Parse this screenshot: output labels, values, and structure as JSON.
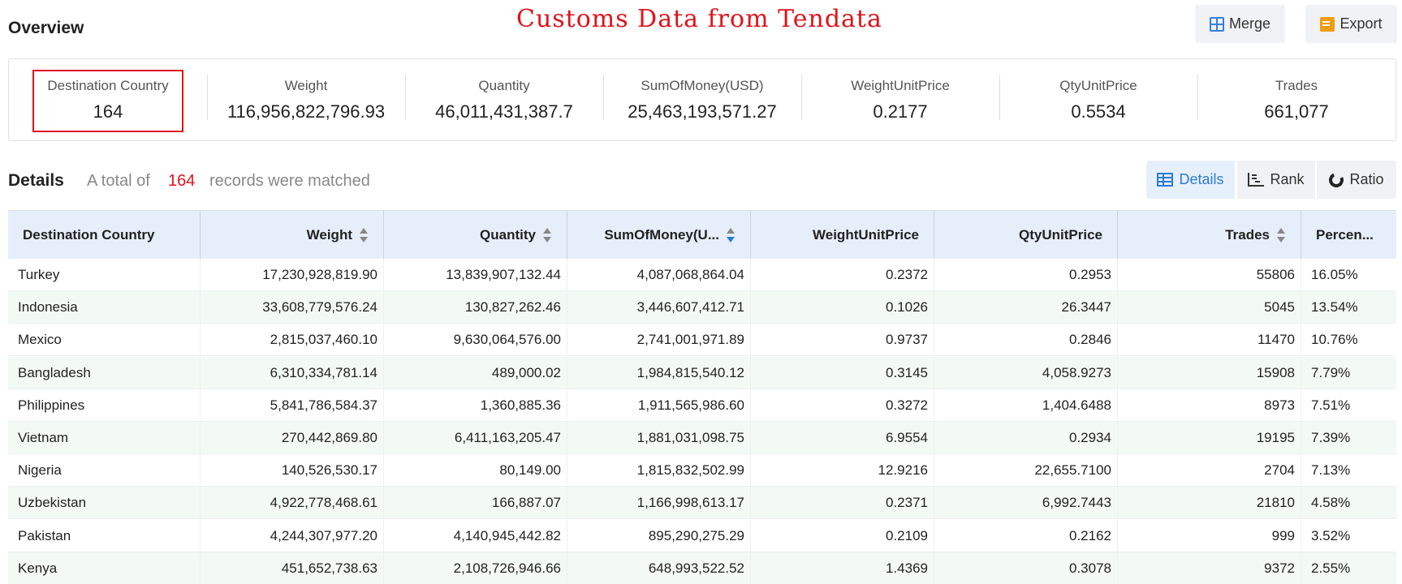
{
  "header": {
    "overview_title": "Overview",
    "watermark": "Customs Data from Tendata",
    "merge_label": "Merge",
    "export_label": "Export"
  },
  "summary": [
    {
      "label": "Destination Country",
      "value": "164"
    },
    {
      "label": "Weight",
      "value": "116,956,822,796.93"
    },
    {
      "label": "Quantity",
      "value": "46,011,431,387.7"
    },
    {
      "label": "SumOfMoney(USD)",
      "value": "25,463,193,571.27"
    },
    {
      "label": "WeightUnitPrice",
      "value": "0.2177"
    },
    {
      "label": "QtyUnitPrice",
      "value": "0.5534"
    },
    {
      "label": "Trades",
      "value": "661,077"
    }
  ],
  "details": {
    "title": "Details",
    "prefix": "A total of",
    "count": "164",
    "suffix": "records were matched",
    "views": {
      "details": "Details",
      "rank": "Rank",
      "ratio": "Ratio"
    }
  },
  "table": {
    "columns": [
      "Destination Country",
      "Weight",
      "Quantity",
      "SumOfMoney(U...",
      "WeightUnitPrice",
      "QtyUnitPrice",
      "Trades",
      "Percen..."
    ],
    "rows": [
      [
        "Turkey",
        "17,230,928,819.90",
        "13,839,907,132.44",
        "4,087,068,864.04",
        "0.2372",
        "0.2953",
        "55806",
        "16.05%"
      ],
      [
        "Indonesia",
        "33,608,779,576.24",
        "130,827,262.46",
        "3,446,607,412.71",
        "0.1026",
        "26.3447",
        "5045",
        "13.54%"
      ],
      [
        "Mexico",
        "2,815,037,460.10",
        "9,630,064,576.00",
        "2,741,001,971.89",
        "0.9737",
        "0.2846",
        "11470",
        "10.76%"
      ],
      [
        "Bangladesh",
        "6,310,334,781.14",
        "489,000.02",
        "1,984,815,540.12",
        "0.3145",
        "4,058.9273",
        "15908",
        "7.79%"
      ],
      [
        "Philippines",
        "5,841,786,584.37",
        "1,360,885.36",
        "1,911,565,986.60",
        "0.3272",
        "1,404.6488",
        "8973",
        "7.51%"
      ],
      [
        "Vietnam",
        "270,442,869.80",
        "6,411,163,205.47",
        "1,881,031,098.75",
        "6.9554",
        "0.2934",
        "19195",
        "7.39%"
      ],
      [
        "Nigeria",
        "140,526,530.17",
        "80,149.00",
        "1,815,832,502.99",
        "12.9216",
        "22,655.7100",
        "2704",
        "7.13%"
      ],
      [
        "Uzbekistan",
        "4,922,778,468.61",
        "166,887.07",
        "1,166,998,613.17",
        "0.2371",
        "6,992.7443",
        "21810",
        "4.58%"
      ],
      [
        "Pakistan",
        "4,244,307,977.20",
        "4,140,945,442.82",
        "895,290,275.29",
        "0.2109",
        "0.2162",
        "999",
        "3.52%"
      ],
      [
        "Kenya",
        "451,652,738.63",
        "2,108,726,946.66",
        "648,993,522.52",
        "1.4369",
        "0.3078",
        "9372",
        "2.55%"
      ]
    ]
  },
  "colors": {
    "accent": "#2d7ad6",
    "highlight": "#e0131a",
    "header_bg": "#e6eef9",
    "alt_row_bg": "#f3f9f4"
  },
  "icons": {
    "merge": "merge-icon",
    "export": "export-icon",
    "details": "table-icon",
    "rank": "rank-icon",
    "ratio": "ratio-icon"
  }
}
